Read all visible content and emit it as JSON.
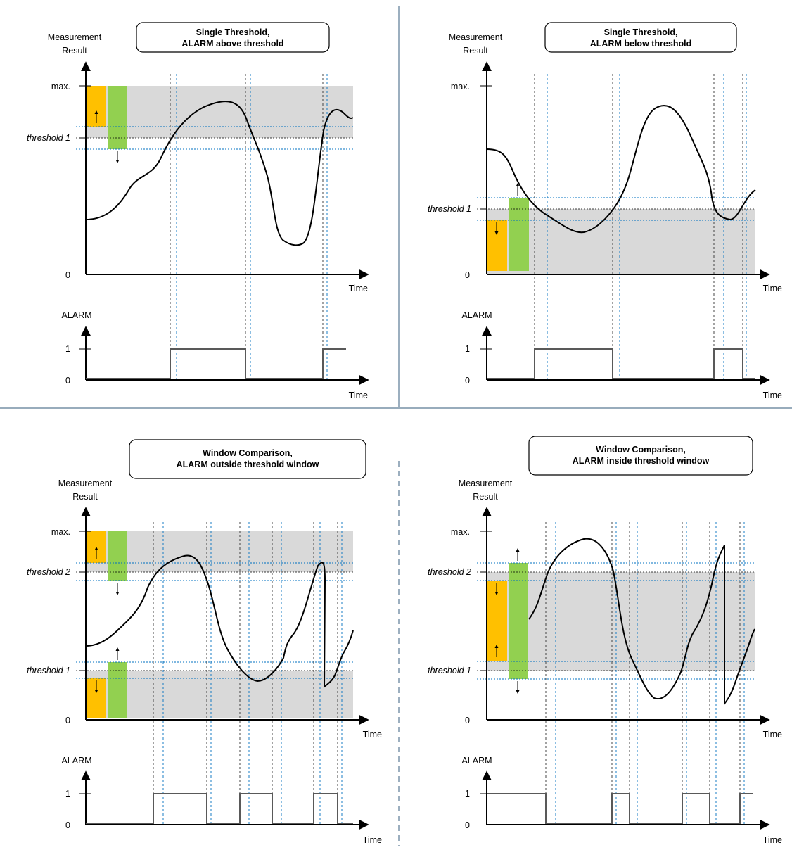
{
  "colors": {
    "band": "#d9d9d9",
    "hysteresis_orange": "#ffc000",
    "hysteresis_green": "#92d050",
    "dashed_blue": "#0070c0",
    "dashed_black": "#000000",
    "alarm_line": "#595959",
    "curve": "#000000",
    "divider": "#5a7a95"
  },
  "panels": [
    {
      "id": "single-above",
      "title_line1": "Single Threshold,",
      "title_line2": "ALARM above threshold",
      "y_axis_label_1": "Measurement",
      "y_axis_label_2": "Result",
      "max_label": "max.",
      "threshold_labels": [
        "threshold 1"
      ],
      "zero_label": "0",
      "time_label": "Time",
      "alarm_label": "ALARM",
      "alarm_one": "1",
      "alarm_zero": "0",
      "alarm_region": "above threshold"
    },
    {
      "id": "single-below",
      "title_line1": "Single Threshold,",
      "title_line2": "ALARM below threshold",
      "y_axis_label_1": "Measurement",
      "y_axis_label_2": "Result",
      "max_label": "max.",
      "threshold_labels": [
        "threshold 1"
      ],
      "zero_label": "0",
      "time_label": "Time",
      "alarm_label": "ALARM",
      "alarm_one": "1",
      "alarm_zero": "0",
      "alarm_region": "below threshold"
    },
    {
      "id": "window-outside",
      "title_line1": "Window Comparison,",
      "title_line2": "ALARM outside threshold window",
      "y_axis_label_1": "Measurement",
      "y_axis_label_2": "Result",
      "max_label": "max.",
      "threshold_labels": [
        "threshold 2",
        "threshold 1"
      ],
      "zero_label": "0",
      "time_label": "Time",
      "alarm_label": "ALARM",
      "alarm_one": "1",
      "alarm_zero": "0",
      "alarm_region": "outside threshold window"
    },
    {
      "id": "window-inside",
      "title_line1": "Window Comparison,",
      "title_line2": "ALARM inside threshold window",
      "y_axis_label_1": "Measurement",
      "y_axis_label_2": "Result",
      "max_label": "max.",
      "threshold_labels": [
        "threshold 2",
        "threshold 1"
      ],
      "zero_label": "0",
      "time_label": "Time",
      "alarm_label": "ALARM",
      "alarm_one": "1",
      "alarm_zero": "0",
      "alarm_region": "inside threshold window"
    }
  ]
}
